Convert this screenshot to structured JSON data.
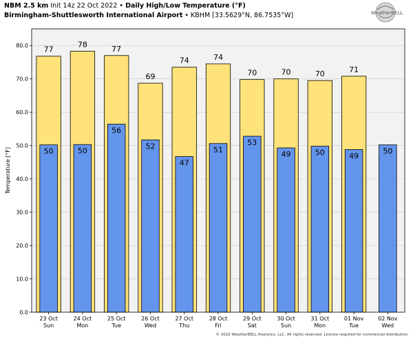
{
  "header": {
    "model": "NBM 2.5 km",
    "init": "Init 14z 22 Oct 2022",
    "bullet": "•",
    "product": "Daily High/Low Temperature (°F)",
    "station_name": "Birmingham-Shuttlesworth International Airport",
    "station_info": "KBHM [33.5629°N, 86.7535°W]"
  },
  "logo": {
    "text": "WeatherBELL"
  },
  "footer": {
    "copyright": "© 2022 WeatherBELL Analytics, LLC. All rights reserved. License required for commercial distribution."
  },
  "chart_data": {
    "type": "bar",
    "title": "Daily High/Low Temperature (°F)",
    "ylabel": "Temperature [°F]",
    "xlabel": "",
    "ylim": [
      0,
      85
    ],
    "yticks": [
      "0.0",
      "10.0",
      "20.0",
      "30.0",
      "40.0",
      "50.0",
      "60.0",
      "70.0",
      "80.0"
    ],
    "ytick_values": [
      0,
      10,
      20,
      30,
      40,
      50,
      60,
      70,
      80
    ],
    "grid": true,
    "categories": [
      {
        "date": "23 Oct",
        "day": "Sun"
      },
      {
        "date": "24 Oct",
        "day": "Mon"
      },
      {
        "date": "25 Oct",
        "day": "Tue"
      },
      {
        "date": "26 Oct",
        "day": "Wed"
      },
      {
        "date": "27 Oct",
        "day": "Thu"
      },
      {
        "date": "28 Oct",
        "day": "Fri"
      },
      {
        "date": "29 Oct",
        "day": "Sat"
      },
      {
        "date": "30 Oct",
        "day": "Sun"
      },
      {
        "date": "31 Oct",
        "day": "Mon"
      },
      {
        "date": "01 Nov",
        "day": "Tue"
      },
      {
        "date": "02 Nov",
        "day": "Wed"
      }
    ],
    "series": [
      {
        "key": "high",
        "color": "#FFE27A",
        "values": [
          77,
          78,
          77,
          69,
          74,
          74,
          70,
          70,
          70,
          71,
          null
        ],
        "plot_values": [
          76.8,
          78.3,
          77.0,
          68.7,
          73.5,
          74.5,
          69.8,
          70.0,
          69.5,
          70.8,
          null
        ]
      },
      {
        "key": "low",
        "color": "#6495ED",
        "values": [
          50,
          50,
          56,
          52,
          47,
          51,
          53,
          49,
          50,
          49,
          50
        ],
        "plot_values": [
          50.2,
          50.3,
          56.4,
          51.7,
          46.7,
          50.6,
          52.8,
          49.3,
          49.8,
          48.8,
          50.2
        ]
      }
    ],
    "plot_background": "#F2F2F2",
    "grid_color": "#C8C8C8"
  }
}
